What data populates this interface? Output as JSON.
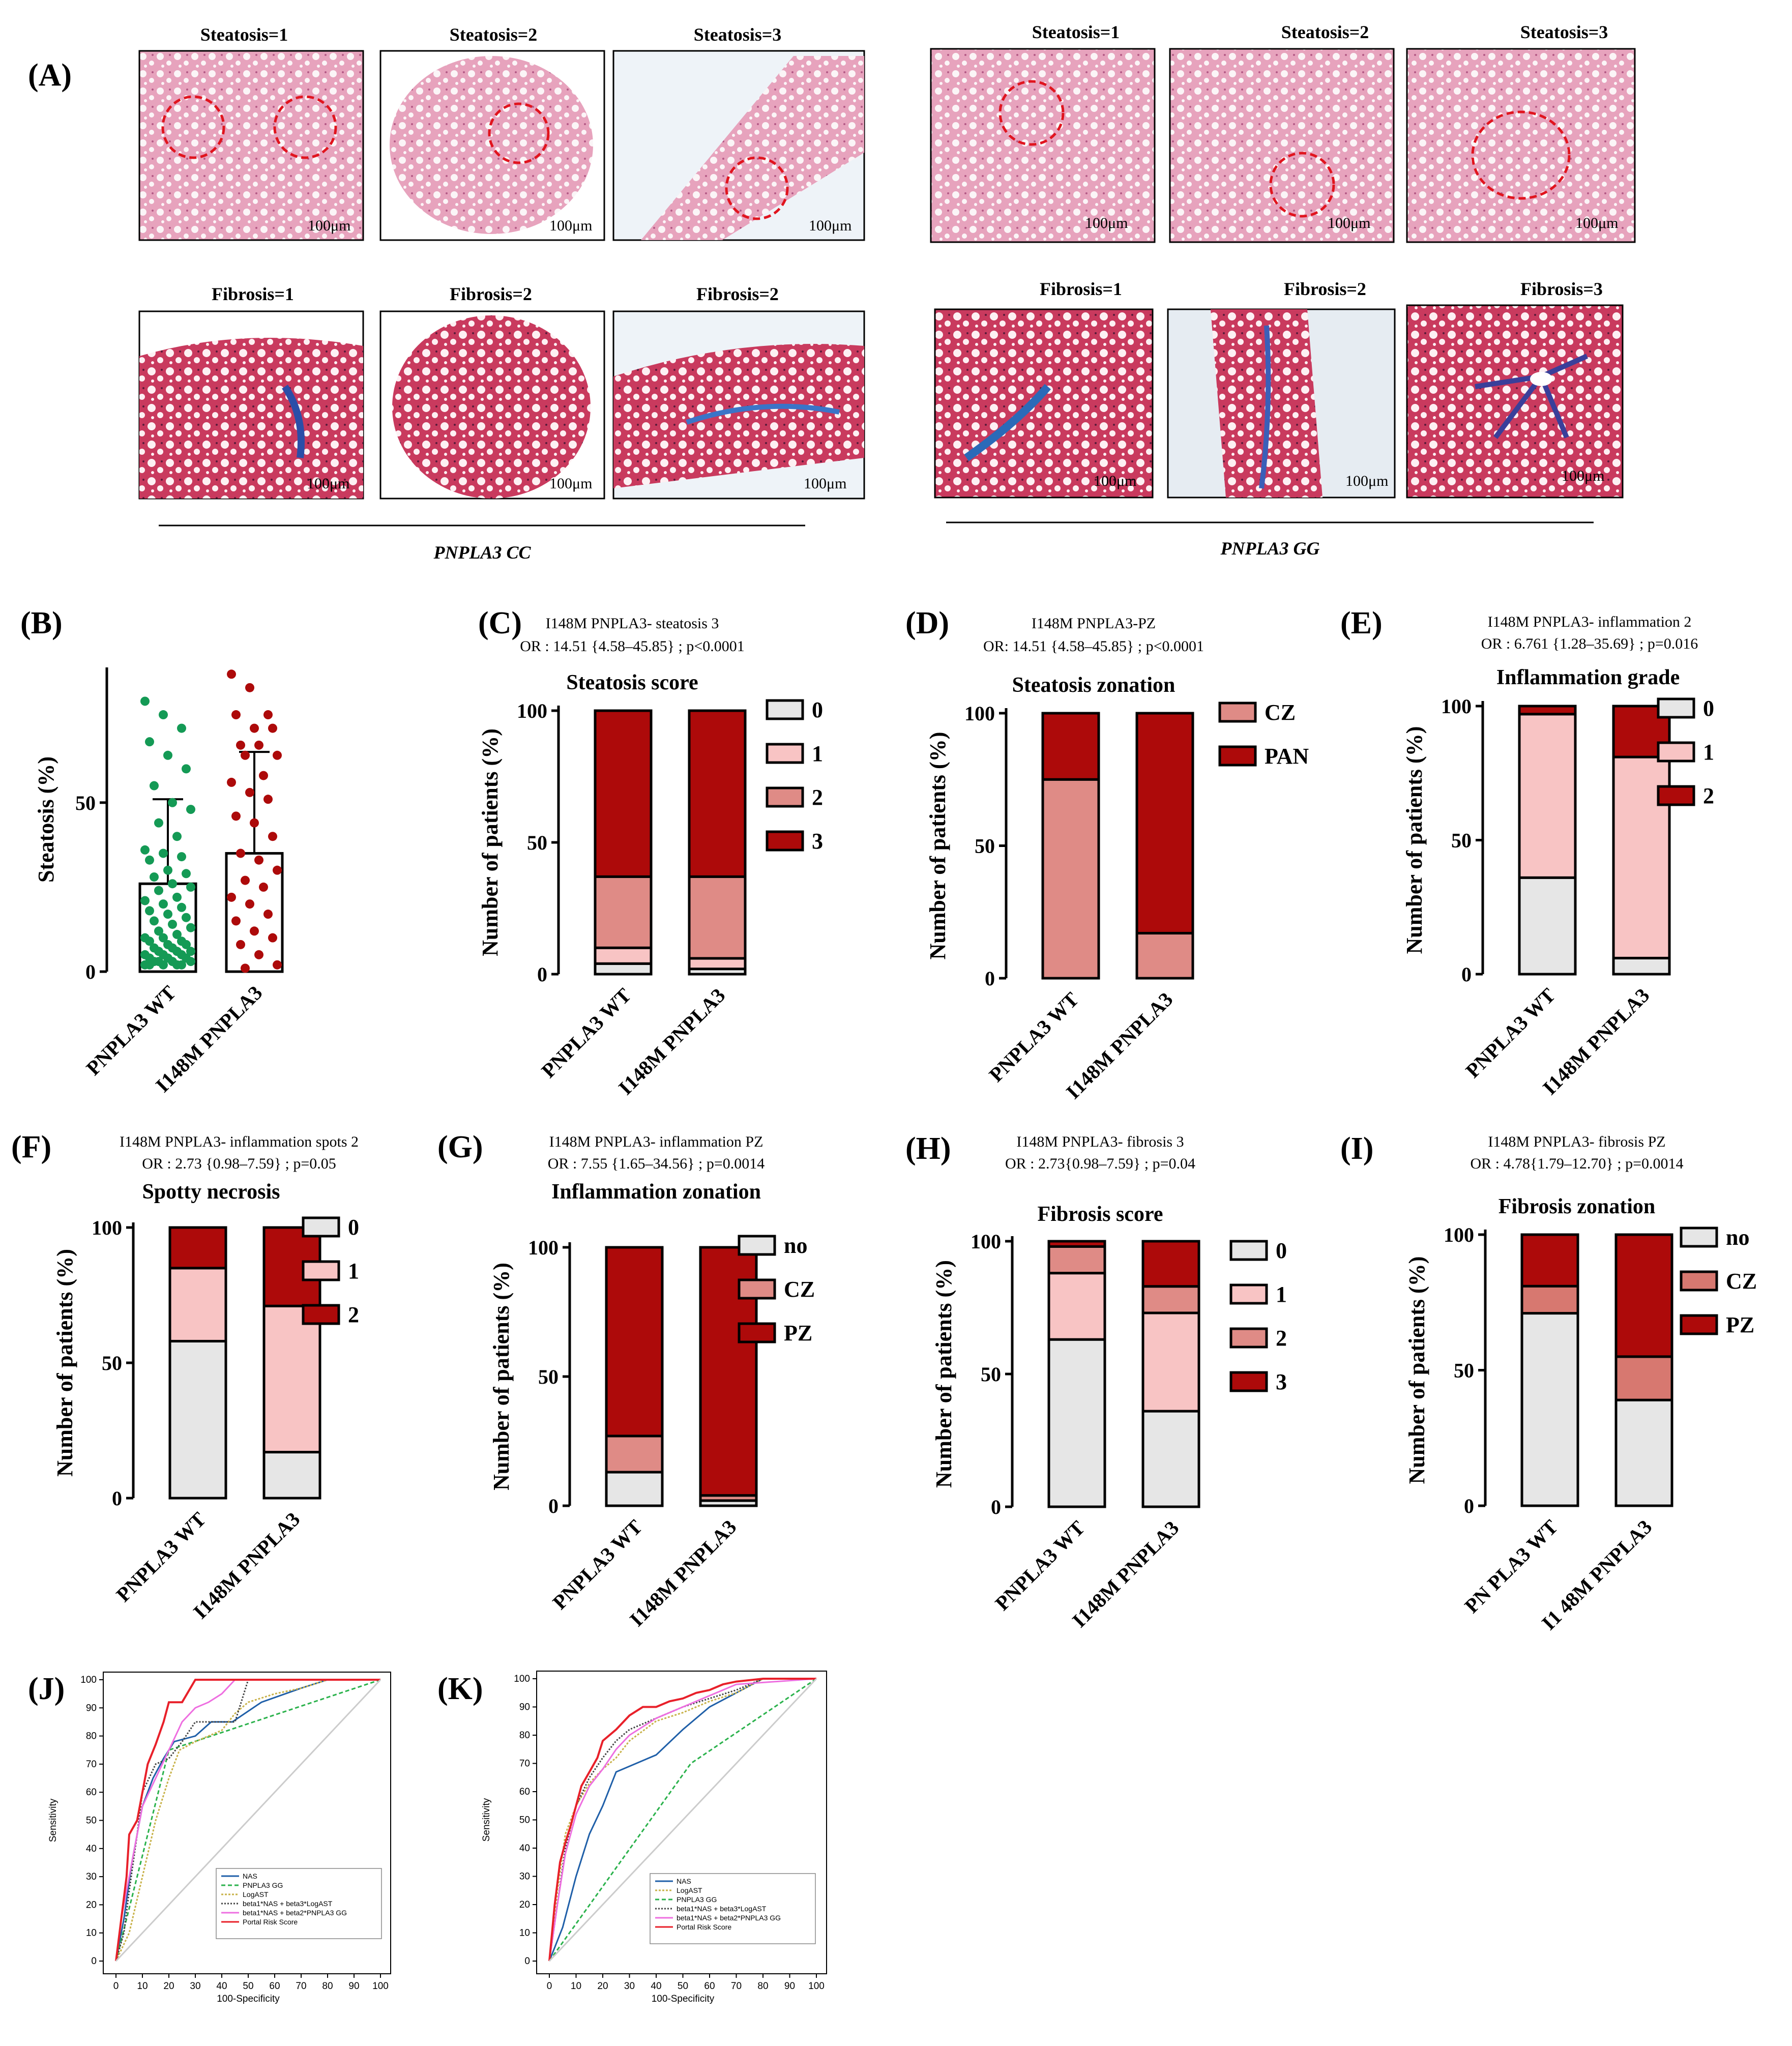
{
  "colors": {
    "light": "#e6e6e6",
    "pink": "#f8c4c4",
    "salmon": "#df8b86",
    "red": "#ad0a0a",
    "rose": "#d77870",
    "green": "#149a55",
    "he": "#e4a4bc",
    "tri": "#c94060"
  },
  "panelA": {
    "label": "(A)",
    "cc_label": "PNPLA3 CC",
    "gg_label": "PNPLA3 GG",
    "scale_bar": "100μm",
    "cc_top": [
      "Steatosis=1",
      "Steatosis=2",
      "Steatosis=3"
    ],
    "cc_bottom": [
      "Fibrosis=1",
      "Fibrosis=2",
      "Fibrosis=2"
    ],
    "gg_top": [
      "Steatosis=1",
      "Steatosis=2",
      "Steatosis=3"
    ],
    "gg_bottom": [
      "Fibrosis=1",
      "Fibrosis=2",
      "Fibrosis=3"
    ]
  },
  "chart_data": [
    {
      "id": "B",
      "label": "(B)",
      "type": "bar",
      "title": "",
      "stats": [],
      "ylabel": "Steatosis (%)",
      "ylim": [
        0,
        90
      ],
      "yticks": [
        0,
        50
      ],
      "categories": [
        "PNPLA3 WT",
        "I148M PNPLA3"
      ],
      "bar_means": [
        26,
        35
      ],
      "error_upper": [
        51,
        65
      ],
      "point_colors": [
        "#149a55",
        "#ad0a0a"
      ],
      "points": [
        [
          80,
          76,
          72,
          68,
          64,
          60,
          55,
          50,
          48,
          44,
          40,
          36,
          35,
          34,
          33,
          30,
          29,
          28,
          26,
          25,
          24,
          22,
          21,
          20,
          19,
          18,
          17,
          16,
          15,
          14,
          13,
          12,
          11,
          10,
          10,
          9,
          9,
          8,
          8,
          7,
          7,
          6,
          6,
          6,
          5,
          5,
          5,
          4,
          4,
          4,
          3,
          3,
          3,
          3,
          2,
          2,
          2,
          2,
          2
        ],
        [
          88,
          84,
          76,
          76,
          72,
          72,
          67,
          67,
          64,
          64,
          58,
          56,
          53,
          51,
          46,
          44,
          40,
          35,
          33,
          30,
          27,
          25,
          22,
          20,
          17,
          15,
          12,
          10,
          8,
          5,
          2,
          1
        ]
      ]
    },
    {
      "id": "C",
      "label": "(C)",
      "type": "bar",
      "title": "Steatosis score",
      "stats": [
        "I148M PNPLA3- steatosis 3",
        "OR : 14.51 {4.58–45.85} ; p<0.0001"
      ],
      "ylabel": "Number of patients (%)",
      "ylim": [
        0,
        100
      ],
      "yticks": [
        0,
        50,
        100
      ],
      "categories": [
        "PNPLA3 WT",
        "I148M PNPLA3"
      ],
      "series": [
        {
          "name": "0",
          "color": "#e6e6e6",
          "values": [
            4,
            2
          ]
        },
        {
          "name": "1",
          "color": "#f8c4c4",
          "values": [
            6,
            4
          ]
        },
        {
          "name": "2",
          "color": "#df8b86",
          "values": [
            27,
            31
          ]
        },
        {
          "name": "3",
          "color": "#ad0a0a",
          "values": [
            63,
            63
          ]
        }
      ]
    },
    {
      "id": "D",
      "label": "(D)",
      "type": "bar",
      "title": "Steatosis zonation",
      "stats": [
        "I148M PNPLA3-PZ",
        "OR: 14.51 {4.58–45.85} ; p<0.0001"
      ],
      "ylabel": "Number of patients (%)",
      "ylim": [
        0,
        100
      ],
      "yticks": [
        0,
        50,
        100
      ],
      "categories": [
        "PNPLA3 WT",
        "I148M PNPLA3"
      ],
      "series": [
        {
          "name": "CZ",
          "color": "#df8b86",
          "values": [
            75,
            17
          ]
        },
        {
          "name": "PAN",
          "color": "#ad0a0a",
          "values": [
            25,
            83
          ]
        }
      ]
    },
    {
      "id": "E",
      "label": "(E)",
      "type": "bar",
      "title": "Inflammation grade",
      "stats": [
        "I148M PNPLA3- inflammation 2",
        "OR : 6.761 {1.28–35.69} ; p=0.016"
      ],
      "ylabel": "Number of patients (%)",
      "ylim": [
        0,
        100
      ],
      "yticks": [
        0,
        50,
        100
      ],
      "categories": [
        "PNPLA3 WT",
        "I148M PNPLA3"
      ],
      "series": [
        {
          "name": "0",
          "color": "#e6e6e6",
          "values": [
            36,
            6
          ]
        },
        {
          "name": "1",
          "color": "#f8c4c4",
          "values": [
            61,
            75
          ]
        },
        {
          "name": "2",
          "color": "#ad0a0a",
          "values": [
            3,
            19
          ]
        }
      ]
    },
    {
      "id": "F",
      "label": "(F)",
      "type": "bar",
      "title": "Spotty necrosis",
      "stats": [
        "I148M PNPLA3- inflammation spots 2",
        "OR : 2.73 {0.98–7.59} ; p=0.05"
      ],
      "ylabel": "Number of patients (%)",
      "ylim": [
        0,
        100
      ],
      "yticks": [
        0,
        50,
        100
      ],
      "categories": [
        "PNPLA3 WT",
        "I148M PNPLA3"
      ],
      "series": [
        {
          "name": "0",
          "color": "#e6e6e6",
          "values": [
            58,
            17
          ]
        },
        {
          "name": "1",
          "color": "#f8c4c4",
          "values": [
            27,
            54
          ]
        },
        {
          "name": "2",
          "color": "#ad0a0a",
          "values": [
            15,
            29
          ]
        }
      ]
    },
    {
      "id": "G",
      "label": "(G)",
      "type": "bar",
      "title": "Inflammation zonation",
      "stats": [
        "I148M PNPLA3- inflammation PZ",
        "OR : 7.55 {1.65–34.56} ; p=0.0014"
      ],
      "ylabel": "Number of patients (%)",
      "ylim": [
        0,
        100
      ],
      "yticks": [
        0,
        50,
        100
      ],
      "categories": [
        "PNPLA3 WT",
        "I148M PNPLA3"
      ],
      "series": [
        {
          "name": "no",
          "color": "#e6e6e6",
          "values": [
            13,
            2
          ]
        },
        {
          "name": "CZ",
          "color": "#df8b86",
          "values": [
            14,
            2
          ]
        },
        {
          "name": "PZ",
          "color": "#ad0a0a",
          "values": [
            73,
            96
          ]
        }
      ]
    },
    {
      "id": "H",
      "label": "(H)",
      "type": "bar",
      "title": "Fibrosis score",
      "stats": [
        "I148M PNPLA3- fibrosis 3",
        "OR : 2.73{0.98–7.59} ; p=0.04"
      ],
      "ylabel": "Number of patients (%)",
      "ylim": [
        0,
        100
      ],
      "yticks": [
        0,
        50,
        100
      ],
      "categories": [
        "PNPLA3 WT",
        "I148M PNPLA3"
      ],
      "series": [
        {
          "name": "0",
          "color": "#e6e6e6",
          "values": [
            63,
            36
          ]
        },
        {
          "name": "1",
          "color": "#f8c4c4",
          "values": [
            25,
            37
          ]
        },
        {
          "name": "2",
          "color": "#df8b86",
          "values": [
            10,
            10
          ]
        },
        {
          "name": "3",
          "color": "#ad0a0a",
          "values": [
            2,
            17
          ]
        }
      ]
    },
    {
      "id": "I",
      "label": "(I)",
      "type": "bar",
      "title": "Fibrosis zonation",
      "stats": [
        "I148M PNPLA3- fibrosis PZ",
        "OR : 4.78{1.79–12.70} ; p=0.0014"
      ],
      "ylabel": "Number of patients (%)",
      "ylim": [
        0,
        100
      ],
      "yticks": [
        0,
        50,
        100
      ],
      "categories": [
        "PN PLA3 WT",
        "I1 48M PNPLA3"
      ],
      "series": [
        {
          "name": "no",
          "color": "#e6e6e6",
          "values": [
            71,
            39
          ]
        },
        {
          "name": "CZ",
          "color": "#d77870",
          "values": [
            10,
            16
          ]
        },
        {
          "name": "PZ",
          "color": "#ad0a0a",
          "values": [
            19,
            45
          ]
        }
      ]
    },
    {
      "id": "J",
      "label": "(J)",
      "type": "line",
      "title": "",
      "xlabel": "100-Specificity",
      "ylabel": "Sensitivity",
      "xlim": [
        0,
        100
      ],
      "ylim": [
        0,
        100
      ],
      "xticks": [
        0,
        10,
        20,
        30,
        40,
        50,
        60,
        70,
        80,
        90,
        100
      ],
      "yticks": [
        0,
        10,
        20,
        30,
        40,
        50,
        60,
        70,
        80,
        90,
        100
      ],
      "series": [
        {
          "name": "NAS",
          "color": "#1f5fa8",
          "dash": "",
          "x": [
            0,
            3,
            6,
            10,
            14,
            18,
            22,
            30,
            36,
            44,
            55,
            70,
            80,
            100
          ],
          "y": [
            0,
            15,
            35,
            55,
            65,
            72,
            78,
            80,
            85,
            85,
            92,
            97,
            100,
            100
          ]
        },
        {
          "name": "PNPLA3 GG",
          "color": "#2bb24c",
          "dash": "8 5",
          "x": [
            0,
            20,
            100
          ],
          "y": [
            0,
            75,
            100
          ]
        },
        {
          "name": "LogAST",
          "color": "#c8b24a",
          "dash": "4 3",
          "x": [
            0,
            5,
            10,
            15,
            20,
            24,
            30,
            35,
            40,
            45,
            50,
            60,
            70,
            80,
            100
          ],
          "y": [
            0,
            10,
            30,
            50,
            65,
            75,
            78,
            80,
            82,
            88,
            92,
            95,
            97,
            100,
            100
          ]
        },
        {
          "name": "beta1*NAS + beta3*LogAST",
          "color": "#444444",
          "dash": "3 3",
          "x": [
            0,
            3,
            5,
            8,
            10,
            15,
            20,
            25,
            30,
            35,
            40,
            45,
            50,
            60,
            80,
            100
          ],
          "y": [
            0,
            10,
            25,
            45,
            60,
            70,
            72,
            78,
            85,
            85,
            85,
            85,
            100,
            100,
            100,
            100
          ]
        },
        {
          "name": "beta1*NAS + beta2*PNPLA3 GG",
          "color": "#ee6ee0",
          "dash": "",
          "x": [
            0,
            2,
            5,
            8,
            10,
            15,
            20,
            25,
            30,
            35,
            40,
            45,
            50,
            100
          ],
          "y": [
            0,
            15,
            30,
            45,
            55,
            65,
            75,
            85,
            90,
            92,
            95,
            100,
            100,
            100
          ]
        },
        {
          "name": "Portal Risk Score",
          "color": "#e8202a",
          "dash": "",
          "x": [
            0,
            2,
            4,
            5,
            8,
            10,
            12,
            15,
            18,
            20,
            22,
            25,
            30,
            33,
            35,
            40,
            45,
            100
          ],
          "y": [
            0,
            15,
            30,
            45,
            50,
            60,
            70,
            77,
            85,
            92,
            92,
            92,
            100,
            100,
            100,
            100,
            100,
            100
          ]
        },
        {
          "name": "reference",
          "color": "#cccccc",
          "dash": "",
          "x": [
            0,
            100
          ],
          "y": [
            0,
            100
          ]
        }
      ],
      "legend": [
        "NAS",
        "PNPLA3 GG",
        "LogAST",
        "beta1*NAS + beta3*LogAST",
        "beta1*NAS + beta2*PNPLA3 GG",
        "Portal Risk Score"
      ]
    },
    {
      "id": "K",
      "label": "(K)",
      "type": "line",
      "title": "",
      "xlabel": "100-Specificity",
      "ylabel": "Sensitivity",
      "xlim": [
        0,
        100
      ],
      "ylim": [
        0,
        100
      ],
      "xticks": [
        0,
        10,
        20,
        30,
        40,
        50,
        60,
        70,
        80,
        90,
        100
      ],
      "yticks": [
        0,
        10,
        20,
        30,
        40,
        50,
        60,
        70,
        80,
        90,
        100
      ],
      "series": [
        {
          "name": "NAS",
          "color": "#1f5fa8",
          "dash": "",
          "x": [
            0,
            5,
            10,
            15,
            20,
            25,
            40,
            50,
            60,
            70,
            80,
            100
          ],
          "y": [
            0,
            12,
            30,
            45,
            55,
            67,
            73,
            82,
            90,
            95,
            100,
            100
          ]
        },
        {
          "name": "LogAST",
          "color": "#c8b24a",
          "dash": "4 3",
          "x": [
            0,
            3,
            6,
            10,
            15,
            20,
            25,
            30,
            40,
            50,
            60,
            70,
            80,
            100
          ],
          "y": [
            0,
            25,
            45,
            55,
            63,
            68,
            72,
            78,
            85,
            88,
            92,
            95,
            100,
            100
          ]
        },
        {
          "name": "PNPLA3 GG",
          "color": "#2bb24c",
          "dash": "8 5",
          "x": [
            0,
            53,
            100
          ],
          "y": [
            0,
            70,
            100
          ]
        },
        {
          "name": "beta1*NAS + beta3*LogAST",
          "color": "#444444",
          "dash": "3 3",
          "x": [
            0,
            3,
            6,
            10,
            15,
            20,
            25,
            30,
            40,
            50,
            60,
            70,
            80,
            100
          ],
          "y": [
            0,
            20,
            40,
            55,
            65,
            72,
            78,
            82,
            86,
            90,
            93,
            96,
            100,
            100
          ]
        },
        {
          "name": "beta1*NAS + beta2*PNPLA3 GG",
          "color": "#ee6ee0",
          "dash": "",
          "x": [
            0,
            3,
            6,
            10,
            15,
            20,
            25,
            30,
            40,
            50,
            60,
            70,
            100
          ],
          "y": [
            0,
            20,
            38,
            52,
            62,
            68,
            75,
            80,
            86,
            90,
            94,
            98,
            100
          ]
        },
        {
          "name": "Portal Risk Score",
          "color": "#e8202a",
          "dash": "",
          "x": [
            0,
            2,
            4,
            6,
            8,
            10,
            12,
            15,
            18,
            20,
            25,
            30,
            35,
            40,
            45,
            50,
            55,
            60,
            65,
            70,
            80,
            90,
            100
          ],
          "y": [
            0,
            20,
            35,
            42,
            48,
            55,
            62,
            67,
            72,
            78,
            82,
            87,
            90,
            90,
            92,
            93,
            95,
            96,
            98,
            99,
            100,
            100,
            100
          ]
        },
        {
          "name": "reference",
          "color": "#cccccc",
          "dash": "",
          "x": [
            0,
            100
          ],
          "y": [
            0,
            100
          ]
        }
      ],
      "legend": [
        "NAS",
        "LogAST",
        "PNPLA3 GG",
        "beta1*NAS + beta3*LogAST",
        "beta1*NAS + beta2*PNPLA3 GG",
        "Portal Risk Score"
      ]
    }
  ]
}
